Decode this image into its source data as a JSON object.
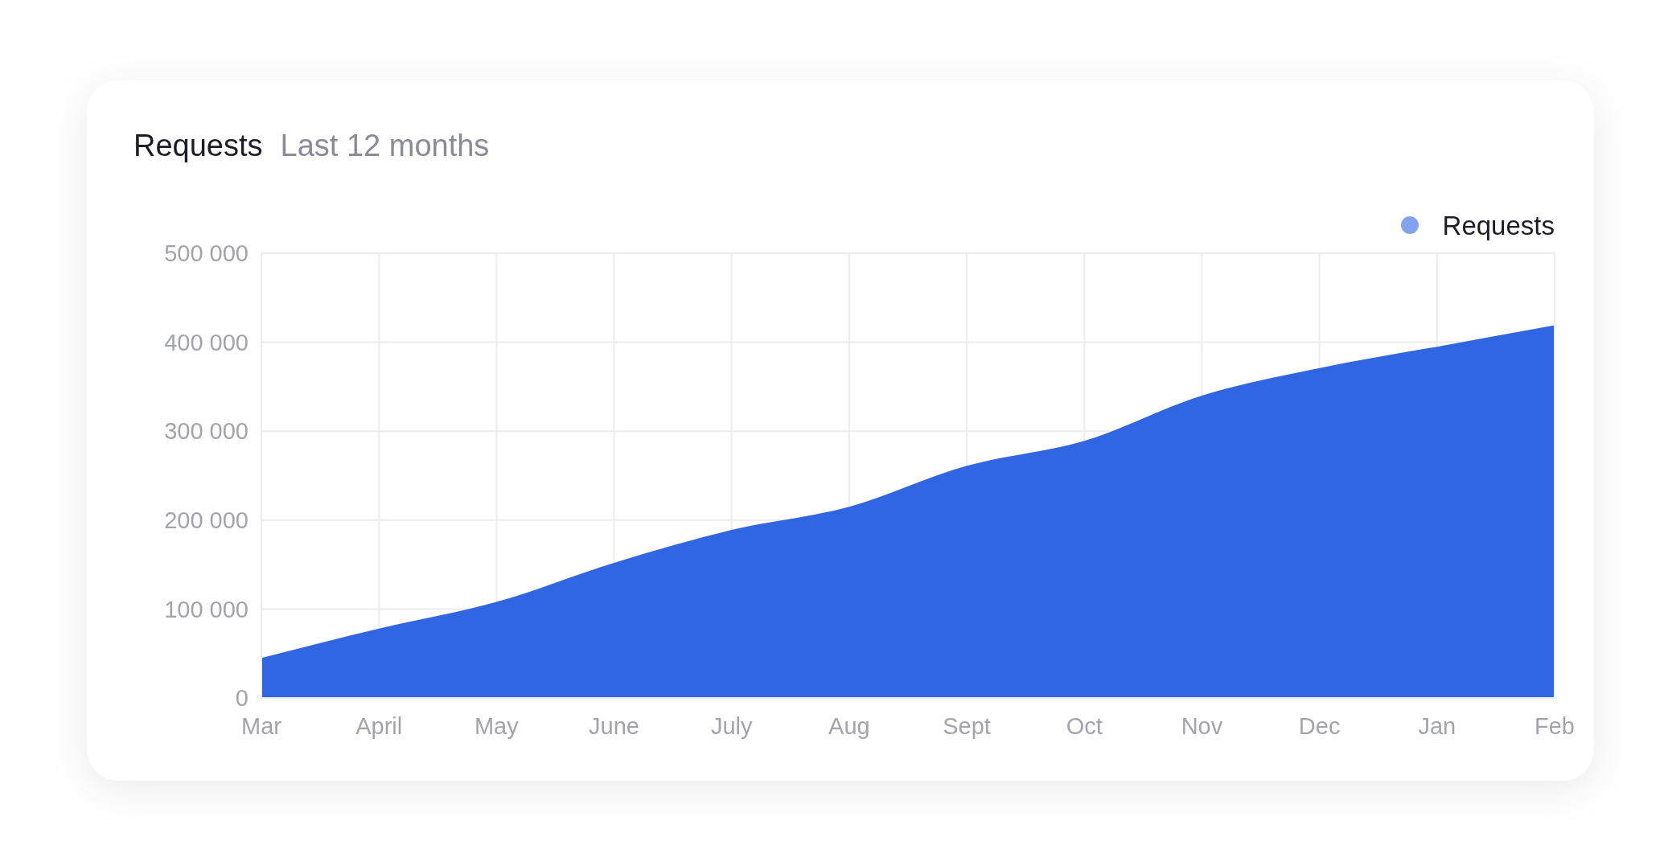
{
  "chart_data": {
    "type": "area",
    "title": "Requests",
    "subtitle": "Last 12 months",
    "categories": [
      "Mar",
      "April",
      "May",
      "June",
      "July",
      "Aug",
      "Sept",
      "Oct",
      "Nov",
      "Dec",
      "Jan",
      "Feb"
    ],
    "series": [
      {
        "name": "Requests",
        "color": "#3166e3",
        "values": [
          45000,
          78000,
          108000,
          152000,
          189000,
          215000,
          261000,
          289000,
          340000,
          371000,
          395000,
          419000
        ]
      }
    ],
    "ylim": [
      0,
      500000
    ],
    "yticks": [
      {
        "value": 0,
        "label": "0"
      },
      {
        "value": 100000,
        "label": "100 000"
      },
      {
        "value": 200000,
        "label": "200 000"
      },
      {
        "value": 300000,
        "label": "300 000"
      },
      {
        "value": 400000,
        "label": "400 000"
      },
      {
        "value": 500000,
        "label": "500 000"
      }
    ],
    "grid": true,
    "legend": "top right"
  }
}
